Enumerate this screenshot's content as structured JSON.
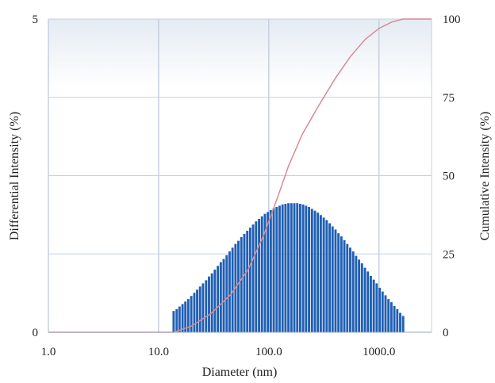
{
  "chart_data": {
    "type": "bar",
    "x_scale": "log",
    "xlim": [
      1.0,
      3000.0
    ],
    "x_ticks": [
      1.0,
      10.0,
      100.0,
      1000.0
    ],
    "x_tick_labels": [
      "1.0",
      "10.0",
      "100.0",
      "1000.0"
    ],
    "xlabel": "Diameter (nm)",
    "ylabel_left": "Differential Intensity (%)",
    "ylim_left": [
      0,
      5
    ],
    "y_ticks_left": [
      0,
      5
    ],
    "y_tick_labels_left": [
      "0",
      "5"
    ],
    "ylabel_right": "Cumulative Intensity (%)",
    "ylim_right": [
      0,
      100
    ],
    "y_ticks_right": [
      0,
      25,
      50,
      75,
      100
    ],
    "y_tick_labels_right": [
      "0",
      "25",
      "50",
      "75",
      "100"
    ],
    "grid": true,
    "differential_intensity": {
      "diameter_nm": [
        13.7,
        14.6,
        15.5,
        16.5,
        17.5,
        18.6,
        19.8,
        21.1,
        22.4,
        23.8,
        25.3,
        27.0,
        28.7,
        30.5,
        32.4,
        34.5,
        36.7,
        39.0,
        41.5,
        44.1,
        46.9,
        49.9,
        53.0,
        56.4,
        60.0,
        63.8,
        67.8,
        72.1,
        76.7,
        81.6,
        86.7,
        92.2,
        98.1,
        104.3,
        110.9,
        117.9,
        125.4,
        133.4,
        141.8,
        150.8,
        160.4,
        170.6,
        181.4,
        192.9,
        205.1,
        218.1,
        231.9,
        246.7,
        262.3,
        278.9,
        296.6,
        315.4,
        335.4,
        356.7,
        379.3,
        403.3,
        428.9,
        456.1,
        485.0,
        515.7,
        548.4,
        583.2,
        620.2,
        659.5,
        701.3,
        745.7,
        793.0,
        843.3,
        896.7,
        953.6,
        1014.0,
        1078.3,
        1146.7,
        1219.3,
        1296.6,
        1378.8,
        1466.2,
        1559.1,
        1657.9
      ],
      "values": [
        0.34,
        0.37,
        0.41,
        0.45,
        0.49,
        0.53,
        0.58,
        0.63,
        0.68,
        0.73,
        0.78,
        0.83,
        0.89,
        0.94,
        1.0,
        1.06,
        1.12,
        1.17,
        1.23,
        1.29,
        1.35,
        1.41,
        1.46,
        1.52,
        1.57,
        1.62,
        1.67,
        1.72,
        1.77,
        1.81,
        1.85,
        1.89,
        1.92,
        1.95,
        1.98,
        2.0,
        2.02,
        2.04,
        2.05,
        2.06,
        2.06,
        2.06,
        2.06,
        2.05,
        2.04,
        2.02,
        2.0,
        1.97,
        1.94,
        1.91,
        1.87,
        1.83,
        1.79,
        1.74,
        1.69,
        1.64,
        1.58,
        1.53,
        1.47,
        1.41,
        1.35,
        1.29,
        1.22,
        1.16,
        1.1,
        1.03,
        0.97,
        0.9,
        0.84,
        0.78,
        0.71,
        0.65,
        0.59,
        0.53,
        0.48,
        0.42,
        0.37,
        0.31,
        0.26
      ],
      "color": "#1f5fb4"
    },
    "cumulative_intensity": {
      "diameter_nm": [
        1.0,
        13.7,
        20.0,
        30.0,
        45.0,
        65.0,
        90.0,
        120.0,
        150.8,
        200.0,
        280.0,
        400.0,
        550.0,
        750.0,
        1000.0,
        1300.0,
        1658.0,
        3000.0
      ],
      "values": [
        0,
        0,
        2,
        6,
        12,
        20,
        31,
        43,
        53,
        63,
        72,
        81,
        88,
        93.5,
        97,
        99,
        100,
        100
      ],
      "color": "#d88a96"
    },
    "background_gradient": [
      "#e4ebf3",
      "#ffffff"
    ],
    "grid_color": "#c7cfe0"
  }
}
